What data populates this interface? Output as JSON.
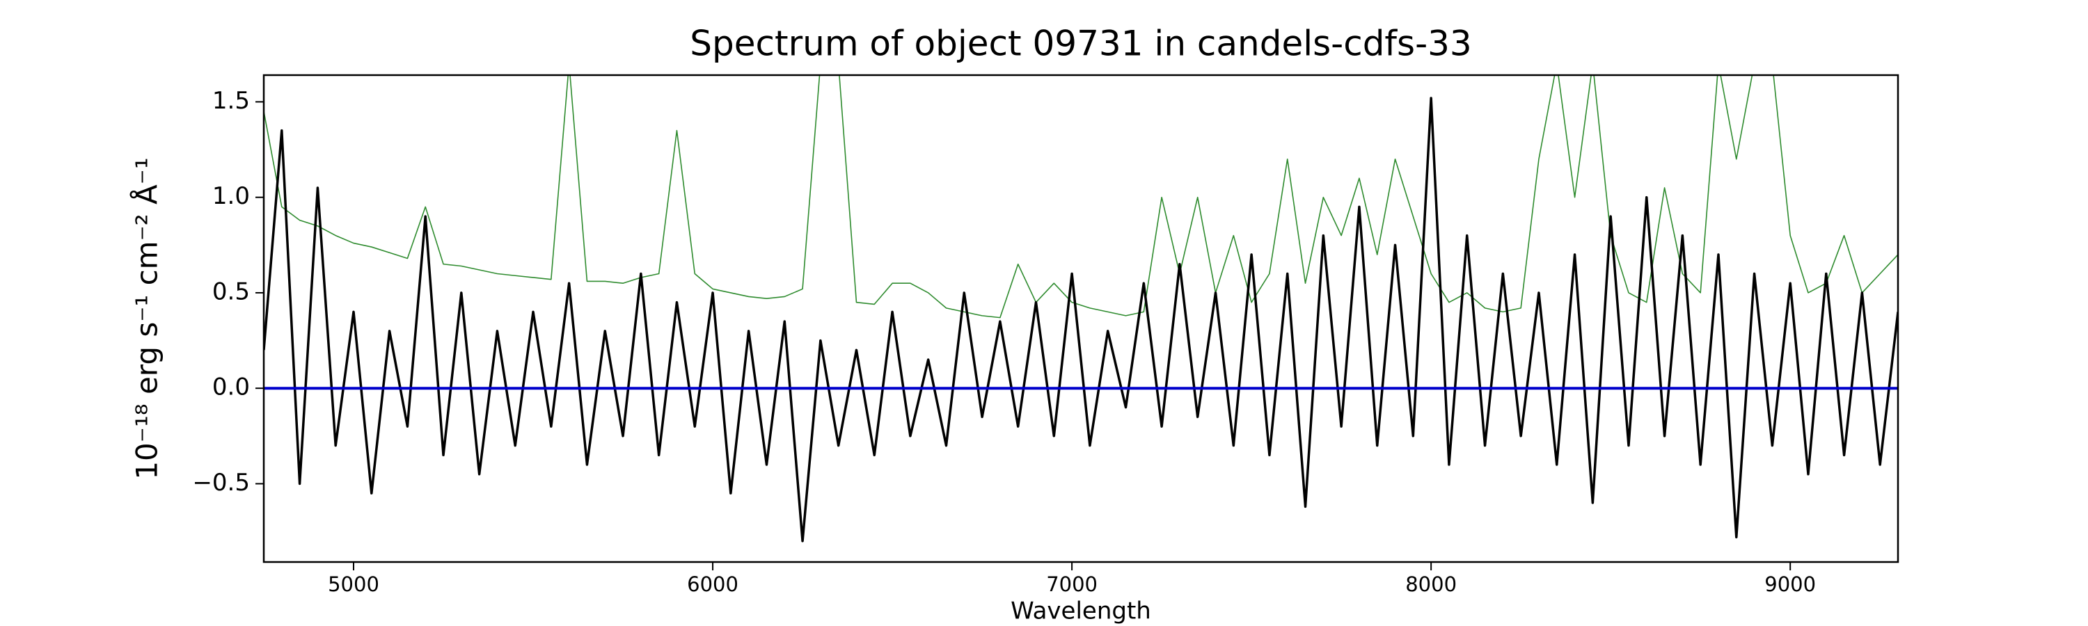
{
  "chart_data": {
    "type": "line",
    "title": "Spectrum of object 09731 in candels-cdfs-33",
    "xlabel": "Wavelength",
    "ylabel": "10⁻¹⁸ erg s⁻¹ cm⁻² Å⁻¹",
    "x": [
      4750,
      4800,
      4850,
      4900,
      4950,
      5000,
      5050,
      5100,
      5150,
      5200,
      5250,
      5300,
      5350,
      5400,
      5450,
      5500,
      5550,
      5600,
      5650,
      5700,
      5750,
      5800,
      5850,
      5900,
      5950,
      6000,
      6050,
      6100,
      6150,
      6200,
      6250,
      6300,
      6350,
      6400,
      6450,
      6500,
      6550,
      6600,
      6650,
      6700,
      6750,
      6800,
      6850,
      6900,
      6950,
      7000,
      7050,
      7100,
      7150,
      7200,
      7250,
      7300,
      7350,
      7400,
      7450,
      7500,
      7550,
      7600,
      7650,
      7700,
      7750,
      7800,
      7850,
      7900,
      7950,
      8000,
      8050,
      8100,
      8150,
      8200,
      8250,
      8300,
      8350,
      8400,
      8450,
      8500,
      8550,
      8600,
      8650,
      8700,
      8750,
      8800,
      8850,
      8900,
      8950,
      9000,
      9050,
      9100,
      9150,
      9200,
      9250,
      9300
    ],
    "series": [
      {
        "color": "#2e8b2e",
        "width": 1.6,
        "values": [
          1.45,
          0.95,
          0.88,
          0.85,
          0.8,
          0.76,
          0.74,
          0.71,
          0.68,
          0.95,
          0.65,
          0.64,
          0.62,
          0.6,
          0.59,
          0.58,
          0.57,
          1.7,
          0.56,
          0.56,
          0.55,
          0.58,
          0.6,
          1.35,
          0.6,
          0.52,
          0.5,
          0.48,
          0.47,
          0.48,
          0.52,
          1.7,
          1.7,
          0.45,
          0.44,
          0.55,
          0.55,
          0.5,
          0.42,
          0.4,
          0.38,
          0.37,
          0.65,
          0.45,
          0.55,
          0.45,
          0.42,
          0.4,
          0.38,
          0.4,
          1.0,
          0.6,
          1.0,
          0.5,
          0.8,
          0.45,
          0.6,
          1.2,
          0.55,
          1.0,
          0.8,
          1.1,
          0.7,
          1.2,
          0.9,
          0.6,
          0.45,
          0.5,
          0.42,
          0.4,
          0.42,
          1.2,
          1.7,
          1.0,
          1.7,
          0.8,
          0.5,
          0.45,
          1.05,
          0.6,
          0.5,
          1.7,
          1.2,
          1.7,
          1.7,
          0.8,
          0.5,
          0.55,
          0.8,
          0.5,
          0.6,
          0.7
        ]
      },
      {
        "color": "#000000",
        "width": 3.5,
        "values": [
          0.2,
          1.35,
          -0.5,
          1.05,
          -0.3,
          0.4,
          -0.55,
          0.3,
          -0.2,
          0.9,
          -0.35,
          0.5,
          -0.45,
          0.3,
          -0.3,
          0.4,
          -0.2,
          0.55,
          -0.4,
          0.3,
          -0.25,
          0.6,
          -0.35,
          0.45,
          -0.2,
          0.5,
          -0.55,
          0.3,
          -0.4,
          0.35,
          -0.8,
          0.25,
          -0.3,
          0.2,
          -0.35,
          0.4,
          -0.25,
          0.15,
          -0.3,
          0.5,
          -0.15,
          0.35,
          -0.2,
          0.45,
          -0.25,
          0.6,
          -0.3,
          0.3,
          -0.1,
          0.55,
          -0.2,
          0.65,
          -0.15,
          0.5,
          -0.3,
          0.7,
          -0.35,
          0.6,
          -0.62,
          0.8,
          -0.2,
          0.95,
          -0.3,
          0.75,
          -0.25,
          1.52,
          -0.4,
          0.8,
          -0.3,
          0.6,
          -0.25,
          0.5,
          -0.4,
          0.7,
          -0.6,
          0.9,
          -0.3,
          1.0,
          -0.25,
          0.8,
          -0.4,
          0.7,
          -0.78,
          0.6,
          -0.3,
          0.55,
          -0.45,
          0.6,
          -0.35,
          0.5,
          -0.4,
          0.4
        ]
      },
      {
        "color": "#0000cc",
        "width": 4,
        "x": [
          4750,
          9300
        ],
        "values": [
          0,
          0
        ]
      }
    ],
    "xlim": [
      4750,
      9300
    ],
    "ylim": [
      -0.91,
      1.64
    ],
    "xticks": [
      5000,
      6000,
      7000,
      8000,
      9000
    ],
    "yticks": [
      {
        "value": -0.5,
        "label": "−0.5"
      },
      {
        "value": 0,
        "label": "0.0"
      },
      0.5,
      {
        "value": 1,
        "label": "1.0"
      },
      1.5
    ]
  }
}
